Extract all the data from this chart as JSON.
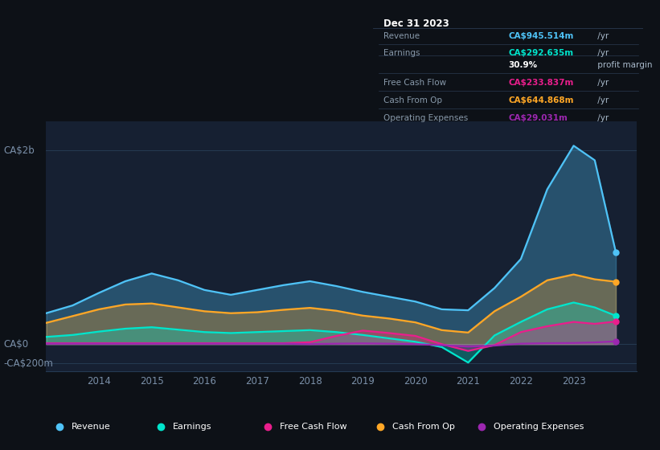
{
  "background_color": "#0d1117",
  "plot_bg_color": "#162032",
  "grid_color": "#253a52",
  "years": [
    2013.0,
    2013.5,
    2014.0,
    2014.5,
    2015.0,
    2015.5,
    2016.0,
    2016.5,
    2017.0,
    2017.5,
    2018.0,
    2018.5,
    2019.0,
    2019.5,
    2020.0,
    2020.5,
    2021.0,
    2021.5,
    2022.0,
    2022.5,
    2023.0,
    2023.4,
    2023.8
  ],
  "revenue": [
    320,
    400,
    530,
    650,
    730,
    660,
    560,
    510,
    560,
    610,
    650,
    600,
    540,
    490,
    440,
    360,
    350,
    580,
    880,
    1600,
    2050,
    1900,
    950
  ],
  "earnings": [
    75,
    95,
    130,
    160,
    175,
    150,
    125,
    115,
    125,
    135,
    145,
    125,
    95,
    60,
    25,
    -30,
    -190,
    90,
    230,
    360,
    430,
    380,
    293
  ],
  "free_cash_flow": [
    10,
    10,
    10,
    10,
    10,
    10,
    10,
    10,
    10,
    10,
    20,
    85,
    140,
    115,
    85,
    0,
    -70,
    -10,
    125,
    185,
    230,
    210,
    234
  ],
  "cash_from_op": [
    220,
    290,
    360,
    410,
    420,
    380,
    340,
    320,
    330,
    355,
    375,
    345,
    295,
    265,
    225,
    145,
    120,
    340,
    490,
    660,
    720,
    670,
    645
  ],
  "operating_expenses": [
    5,
    5,
    5,
    5,
    5,
    5,
    5,
    5,
    5,
    5,
    0,
    5,
    8,
    5,
    0,
    -10,
    -25,
    -15,
    5,
    10,
    12,
    18,
    29
  ],
  "revenue_color": "#4fc3f7",
  "earnings_color": "#00e5cc",
  "free_cash_flow_color": "#e91e8c",
  "cash_from_op_color": "#ffa726",
  "operating_expenses_color": "#9c27b0",
  "ylim": [
    -280,
    2300
  ],
  "xlim": [
    2013.0,
    2024.2
  ],
  "ytick_vals": [
    2000,
    0,
    -200
  ],
  "ytick_labels": [
    "CA$2b",
    "CA$0",
    "-CA$200m"
  ],
  "xtick_vals": [
    2014,
    2015,
    2016,
    2017,
    2018,
    2019,
    2020,
    2021,
    2022,
    2023
  ],
  "legend_items": [
    {
      "label": "Revenue",
      "color": "#4fc3f7"
    },
    {
      "label": "Earnings",
      "color": "#00e5cc"
    },
    {
      "label": "Free Cash Flow",
      "color": "#e91e8c"
    },
    {
      "label": "Cash From Op",
      "color": "#ffa726"
    },
    {
      "label": "Operating Expenses",
      "color": "#9c27b0"
    }
  ],
  "tooltip_title": "Dec 31 2023",
  "tooltip_bg": "#0a0f1a",
  "tooltip_border": "#2a3a50",
  "tooltip_rows": [
    {
      "label": "Revenue",
      "value": "CA$945.514m",
      "suffix": " /yr",
      "color": "#4fc3f7"
    },
    {
      "label": "Earnings",
      "value": "CA$292.635m",
      "suffix": " /yr",
      "color": "#00e5cc"
    },
    {
      "label": "",
      "value": "30.9%",
      "suffix": " profit margin",
      "color": "#ffffff"
    },
    {
      "label": "Free Cash Flow",
      "value": "CA$233.837m",
      "suffix": " /yr",
      "color": "#e91e8c"
    },
    {
      "label": "Cash From Op",
      "value": "CA$644.868m",
      "suffix": " /yr",
      "color": "#ffa726"
    },
    {
      "label": "Operating Expenses",
      "value": "CA$29.031m",
      "suffix": " /yr",
      "color": "#9c27b0"
    }
  ]
}
